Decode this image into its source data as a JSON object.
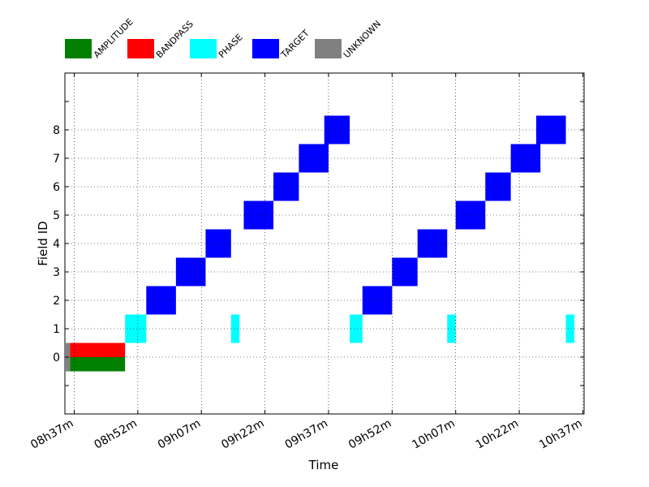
{
  "chart_data": {
    "type": "timeline",
    "xlabel": "Time",
    "ylabel": "Field ID",
    "x_ticks": [
      "08h37m",
      "08h52m",
      "09h07m",
      "09h22m",
      "09h37m",
      "09h52m",
      "10h07m",
      "10h22m",
      "10h37m"
    ],
    "x_range_minutes": [
      "08h37m",
      "10h37m"
    ],
    "y_ticks": [
      "0",
      "1",
      "2",
      "3",
      "4",
      "5",
      "6",
      "7",
      "8"
    ],
    "ylim": [
      -2,
      10
    ],
    "grid": true,
    "legend_position": "top",
    "legend": [
      {
        "label": "AMPLITUDE",
        "color": "#008000"
      },
      {
        "label": "BANDPASS",
        "color": "#ff0000"
      },
      {
        "label": "PHASE",
        "color": "#00ffff"
      },
      {
        "label": "TARGET",
        "color": "#0000ff"
      },
      {
        "label": "UNKNOWN",
        "color": "#808080"
      }
    ],
    "scans": [
      {
        "intent": "UNKNOWN",
        "field": 0,
        "start": "08h35m",
        "end": "08h36m",
        "half": "full"
      },
      {
        "intent": "BANDPASS",
        "field": 0,
        "start": "08h36m",
        "end": "08h49m",
        "half": "upper"
      },
      {
        "intent": "AMPLITUDE",
        "field": 0,
        "start": "08h36m",
        "end": "08h49m",
        "half": "lower"
      },
      {
        "intent": "PHASE",
        "field": 1,
        "start": "08h49m",
        "end": "08h54m",
        "half": "full"
      },
      {
        "intent": "TARGET",
        "field": 2,
        "start": "08h54m",
        "end": "09h01m",
        "half": "full"
      },
      {
        "intent": "TARGET",
        "field": 3,
        "start": "09h01m",
        "end": "09h08m",
        "half": "full"
      },
      {
        "intent": "TARGET",
        "field": 4,
        "start": "09h08m",
        "end": "09h14m",
        "half": "full"
      },
      {
        "intent": "PHASE",
        "field": 1,
        "start": "09h14m",
        "end": "09h16m",
        "half": "full"
      },
      {
        "intent": "TARGET",
        "field": 5,
        "start": "09h17m",
        "end": "09h24m",
        "half": "full"
      },
      {
        "intent": "TARGET",
        "field": 6,
        "start": "09h24m",
        "end": "09h30m",
        "half": "full"
      },
      {
        "intent": "TARGET",
        "field": 7,
        "start": "09h30m",
        "end": "09h37m",
        "half": "full"
      },
      {
        "intent": "TARGET",
        "field": 8,
        "start": "09h36m",
        "end": "09h42m",
        "half": "full"
      },
      {
        "intent": "PHASE",
        "field": 1,
        "start": "09h42m",
        "end": "09h45m",
        "half": "full"
      },
      {
        "intent": "TARGET",
        "field": 2,
        "start": "09h45m",
        "end": "09h52m",
        "half": "full"
      },
      {
        "intent": "TARGET",
        "field": 3,
        "start": "09h52m",
        "end": "09h58m",
        "half": "full"
      },
      {
        "intent": "TARGET",
        "field": 4,
        "start": "09h58m",
        "end": "10h05m",
        "half": "full"
      },
      {
        "intent": "PHASE",
        "field": 1,
        "start": "10h05m",
        "end": "10h07m",
        "half": "full"
      },
      {
        "intent": "TARGET",
        "field": 5,
        "start": "10h07m",
        "end": "10h14m",
        "half": "full"
      },
      {
        "intent": "TARGET",
        "field": 6,
        "start": "10h14m",
        "end": "10h20m",
        "half": "full"
      },
      {
        "intent": "TARGET",
        "field": 7,
        "start": "10h20m",
        "end": "10h27m",
        "half": "full"
      },
      {
        "intent": "TARGET",
        "field": 8,
        "start": "10h26m",
        "end": "10h33m",
        "half": "full"
      },
      {
        "intent": "PHASE",
        "field": 1,
        "start": "10h33m",
        "end": "10h35m",
        "half": "full"
      }
    ]
  }
}
